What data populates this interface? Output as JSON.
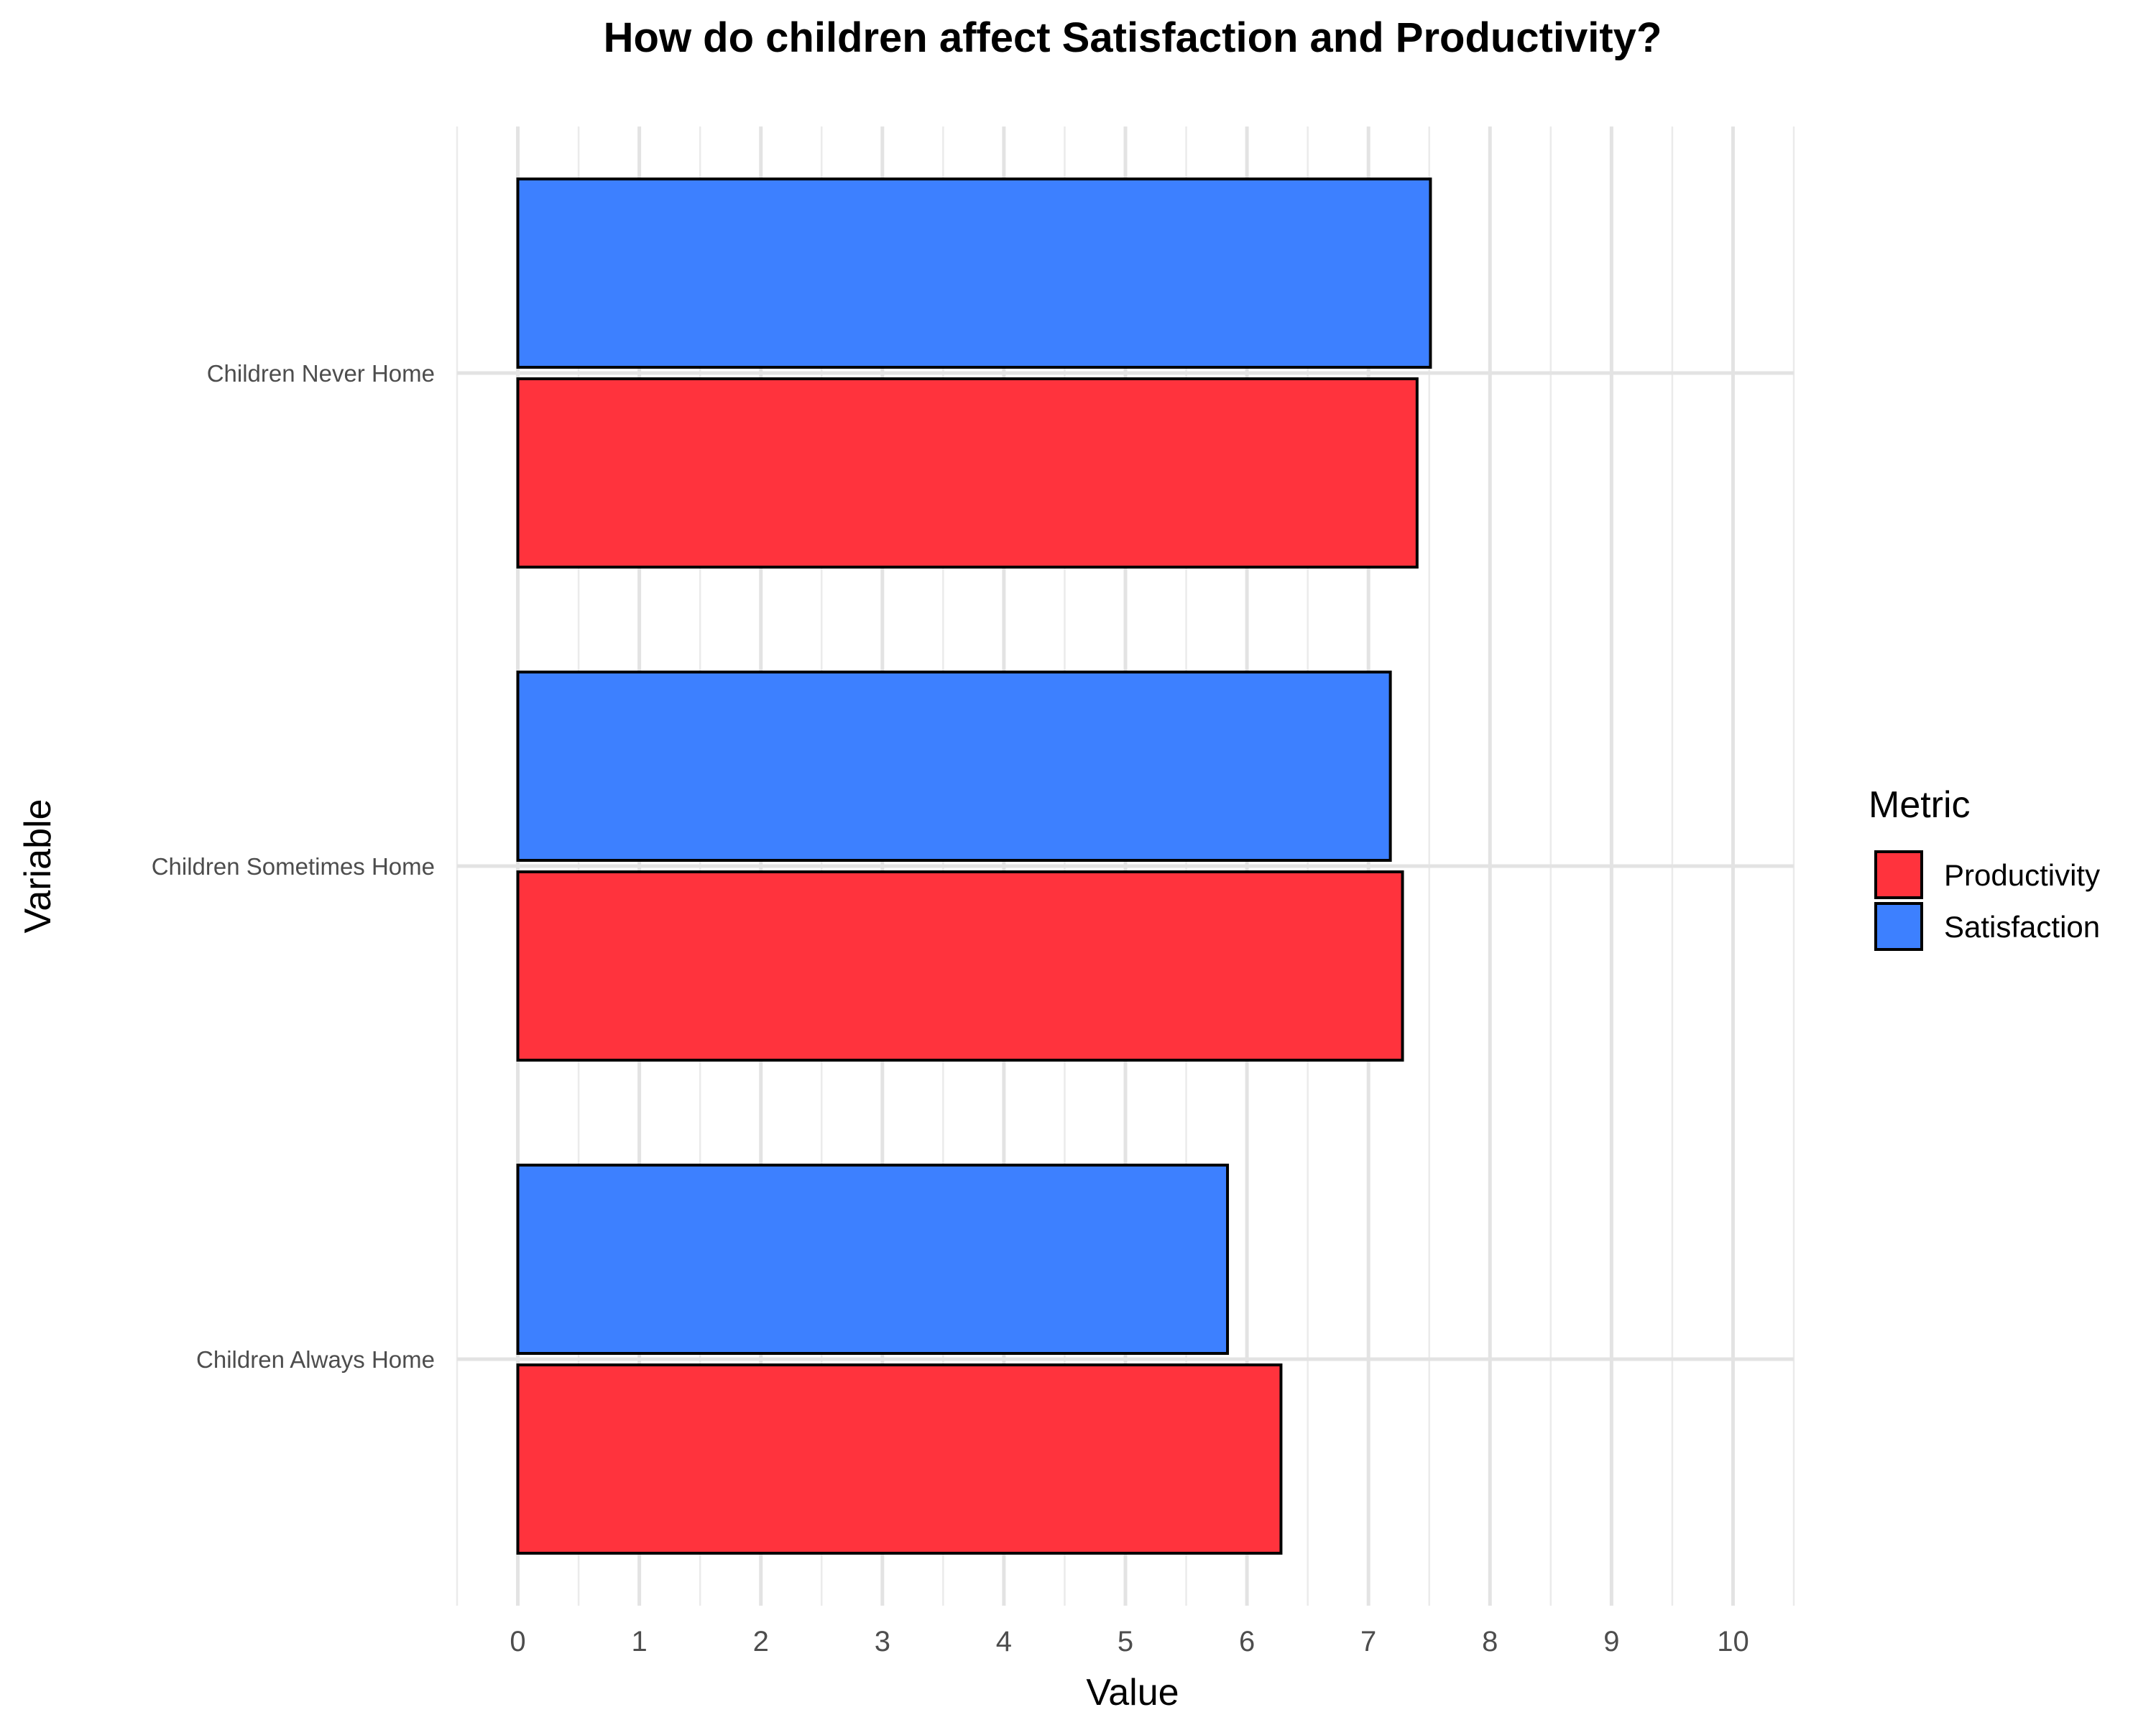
{
  "chart_data": {
    "type": "bar",
    "orientation": "horizontal",
    "title": "How do children affect Satisfaction and Productivity?",
    "xlabel": "Value",
    "ylabel": "Variable",
    "categories": [
      "Children Always Home",
      "Children Sometimes Home",
      "Children Never Home"
    ],
    "series": [
      {
        "name": "Productivity",
        "color": "#ff333d",
        "values": [
          6.28,
          7.28,
          7.4
        ]
      },
      {
        "name": "Satisfaction",
        "color": "#3d80ff",
        "values": [
          5.84,
          7.18,
          7.51
        ]
      }
    ],
    "xlim": [
      -0.5,
      10.5
    ],
    "xticks": [
      "0",
      "1",
      "2",
      "3",
      "4",
      "5",
      "6",
      "7",
      "8",
      "9",
      "10"
    ],
    "grid": true,
    "legend": {
      "title": "Metric",
      "position": "right"
    },
    "bar_outline_color": "#000000"
  }
}
